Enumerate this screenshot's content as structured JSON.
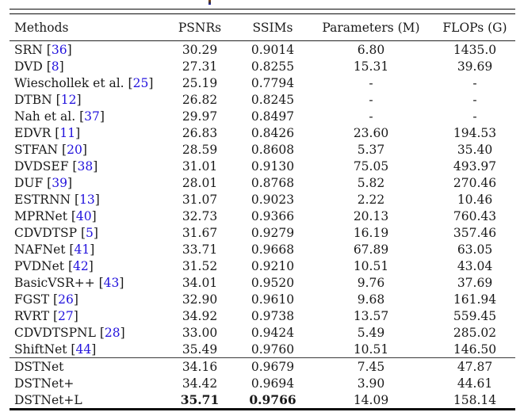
{
  "colors": {
    "citation_link": "#2212dd",
    "text": "#1a1a1a",
    "rule": "#0d0d0d"
  },
  "table": {
    "headers": [
      "Methods",
      "PSNRs",
      "SSIMs",
      "Parameters (M)",
      "FLOPs (G)"
    ],
    "cite_open": " [",
    "cite_close": "]",
    "rows": [
      {
        "method": "SRN",
        "cite": "36",
        "psnr": "30.29",
        "ssim": "0.9014",
        "params": "6.80",
        "flops": "1435.0"
      },
      {
        "method": "DVD",
        "cite": "8",
        "psnr": "27.31",
        "ssim": "0.8255",
        "params": "15.31",
        "flops": "39.69"
      },
      {
        "method": "Wieschollek et al.",
        "cite": "25",
        "psnr": "25.19",
        "ssim": "0.7794",
        "params": "-",
        "flops": "-"
      },
      {
        "method": "DTBN",
        "cite": "12",
        "psnr": "26.82",
        "ssim": "0.8245",
        "params": "-",
        "flops": "-"
      },
      {
        "method": "Nah et al.",
        "cite": "37",
        "psnr": "29.97",
        "ssim": "0.8497",
        "params": "-",
        "flops": "-"
      },
      {
        "method": "EDVR",
        "cite": "11",
        "psnr": "26.83",
        "ssim": "0.8426",
        "params": "23.60",
        "flops": "194.53"
      },
      {
        "method": "STFAN",
        "cite": "20",
        "psnr": "28.59",
        "ssim": "0.8608",
        "params": "5.37",
        "flops": "35.40"
      },
      {
        "method": "DVDSEF",
        "cite": "38",
        "psnr": "31.01",
        "ssim": "0.9130",
        "params": "75.05",
        "flops": "493.97"
      },
      {
        "method": "DUF",
        "cite": "39",
        "psnr": "28.01",
        "ssim": "0.8768",
        "params": "5.82",
        "flops": "270.46"
      },
      {
        "method": "ESTRNN",
        "cite": "13",
        "psnr": "31.07",
        "ssim": "0.9023",
        "params": "2.22",
        "flops": "10.46"
      },
      {
        "method": "MPRNet",
        "cite": "40",
        "psnr": "32.73",
        "ssim": "0.9366",
        "params": "20.13",
        "flops": "760.43"
      },
      {
        "method": "CDVDTSP",
        "cite": "5",
        "psnr": "31.67",
        "ssim": "0.9279",
        "params": "16.19",
        "flops": "357.46"
      },
      {
        "method": "NAFNet",
        "cite": "41",
        "psnr": "33.71",
        "ssim": "0.9668",
        "params": "67.89",
        "flops": "63.05"
      },
      {
        "method": "PVDNet",
        "cite": "42",
        "psnr": "31.52",
        "ssim": "0.9210",
        "params": "10.51",
        "flops": "43.04"
      },
      {
        "method": "BasicVSR++",
        "cite": "43",
        "psnr": "34.01",
        "ssim": "0.9520",
        "params": "9.76",
        "flops": "37.69"
      },
      {
        "method": "FGST",
        "cite": "26",
        "psnr": "32.90",
        "ssim": "0.9610",
        "params": "9.68",
        "flops": "161.94"
      },
      {
        "method": "RVRT",
        "cite": "27",
        "psnr": "34.92",
        "ssim": "0.9738",
        "params": "13.57",
        "flops": "559.45"
      },
      {
        "method": "CDVDTSPNL",
        "cite": "28",
        "psnr": "33.00",
        "ssim": "0.9424",
        "params": "5.49",
        "flops": "285.02"
      },
      {
        "method": "ShiftNet",
        "cite": "44",
        "psnr": "35.49",
        "ssim": "0.9760",
        "params": "10.51",
        "flops": "146.50"
      },
      {
        "method": "DSTNet",
        "cite": null,
        "rule_above": true,
        "psnr": "34.16",
        "ssim": "0.9679",
        "params": "7.45",
        "flops": "47.87"
      },
      {
        "method": "DSTNet+",
        "cite": null,
        "psnr": "34.42",
        "ssim": "0.9694",
        "params": "3.90",
        "flops": "44.61"
      },
      {
        "method": "DSTNet+L",
        "cite": null,
        "bold_psnr": true,
        "bold_ssim": true,
        "psnr": "35.71",
        "ssim": "0.9766",
        "params": "14.09",
        "flops": "158.14"
      }
    ]
  }
}
